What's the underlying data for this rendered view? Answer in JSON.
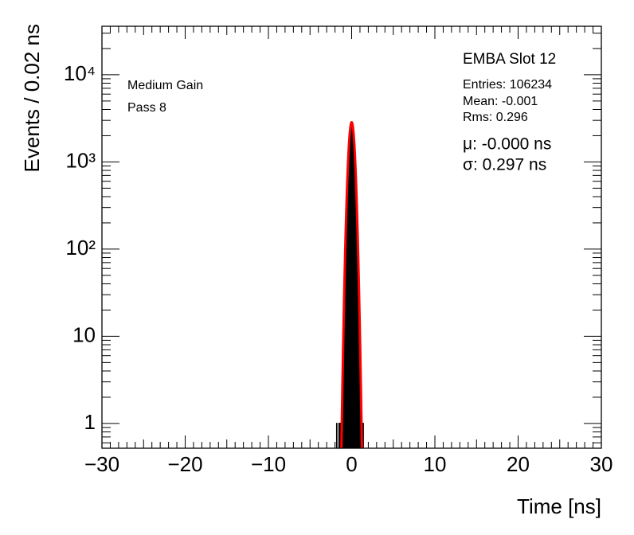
{
  "chart_data": {
    "type": "histogram",
    "xlabel": "Time [ns]",
    "ylabel": "Events / 0.02 ns",
    "xlim": [
      -30,
      30
    ],
    "xticks": [
      {
        "value": -30,
        "label": "−30"
      },
      {
        "value": -20,
        "label": "−20"
      },
      {
        "value": -10,
        "label": "−10"
      },
      0,
      10,
      20,
      30
    ],
    "ylim": [
      0.52,
      36000
    ],
    "yticks": [
      1,
      10,
      {
        "value": 100,
        "label": "10²"
      },
      {
        "value": 1000,
        "label": "10³"
      },
      {
        "value": 10000,
        "label": "10⁴"
      }
    ],
    "log_y": true,
    "color": "#000000",
    "bins": [
      -1.8,
      -1.78,
      -1.76,
      -1.74,
      -1.72,
      -1.7,
      -1.68,
      -1.66,
      -1.64,
      -1.62,
      -1.6,
      -1.58,
      -1.56,
      -1.54,
      -1.52,
      -1.5,
      -1.48,
      -1.46,
      -1.44,
      -1.42,
      -1.4,
      -1.38,
      -1.36,
      -1.34,
      -1.32,
      -1.3,
      -1.28,
      -1.26,
      -1.24,
      -1.22,
      -1.2,
      -1.18,
      -1.16,
      -1.14,
      -1.12,
      -1.1,
      -1.08,
      -1.06,
      -1.04,
      -1.02,
      -1.0,
      -0.98,
      -0.96,
      -0.94,
      -0.92,
      -0.9,
      -0.88,
      -0.86,
      -0.84,
      -0.82,
      -0.8,
      -0.78,
      -0.76,
      -0.74,
      -0.72,
      -0.7,
      -0.68,
      -0.66,
      -0.64,
      -0.62,
      -0.6,
      -0.58,
      -0.56,
      -0.54,
      -0.52,
      -0.5,
      -0.48,
      -0.46,
      -0.44,
      -0.42,
      -0.4,
      -0.38,
      -0.36,
      -0.34,
      -0.32,
      -0.3,
      -0.28,
      -0.26,
      -0.24,
      -0.22,
      -0.2,
      -0.18,
      -0.16,
      -0.14,
      -0.12,
      -0.1,
      -0.08,
      -0.06,
      -0.04,
      -0.02,
      0,
      0.02,
      0.04,
      0.06,
      0.08,
      0.1,
      0.12,
      0.14,
      0.16,
      0.18,
      0.2,
      0.22,
      0.24,
      0.26,
      0.28,
      0.3,
      0.32,
      0.34,
      0.36,
      0.38,
      0.4,
      0.42,
      0.44,
      0.46,
      0.48,
      0.5,
      0.52,
      0.54,
      0.56,
      0.58,
      0.6,
      0.62,
      0.64,
      0.66,
      0.68,
      0.7,
      0.72,
      0.74,
      0.76,
      0.78,
      0.8,
      0.82,
      0.84,
      0.86,
      0.88,
      0.9,
      0.92,
      0.94,
      0.96,
      0.98,
      1.0,
      1.02,
      1.04,
      1.06,
      1.08,
      1.1,
      1.12,
      1.14,
      1.16,
      1.18,
      1.2,
      1.22,
      1.24,
      1.26,
      1.28,
      1.3,
      1.32,
      1.34,
      1.36,
      1.38,
      1.4,
      1.42,
      1.44,
      1.46,
      1.48,
      1.5,
      1.52,
      1.54,
      1.56,
      1.58,
      1.6
    ],
    "values": [
      1,
      0,
      0,
      0,
      0,
      0,
      0,
      0,
      0,
      0,
      0,
      0,
      0,
      0,
      1,
      0,
      0,
      0,
      1,
      0,
      0,
      0,
      0,
      1,
      0,
      0,
      1,
      0,
      1,
      1,
      1,
      1,
      2,
      2,
      3,
      3,
      4,
      5,
      7,
      9,
      11,
      14,
      17,
      21,
      26,
      32,
      39,
      47,
      57,
      69,
      83,
      99,
      117,
      139,
      164,
      192,
      223,
      260,
      300,
      346,
      397,
      453,
      514,
      580,
      652,
      730,
      814,
      903,
      998,
      1098,
      1203,
      1312,
      1424,
      1538,
      1654,
      1771,
      1887,
      2002,
      2115,
      2223,
      2326,
      2423,
      2512,
      2593,
      2665,
      2726,
      2776,
      2814,
      2839,
      2852,
      2852,
      2839,
      2814,
      2776,
      2726,
      2665,
      2593,
      2512,
      2423,
      2326,
      2223,
      2115,
      2002,
      1887,
      1771,
      1654,
      1538,
      1424,
      1312,
      1203,
      1098,
      998,
      903,
      814,
      730,
      652,
      580,
      514,
      453,
      397,
      346,
      300,
      260,
      223,
      192,
      164,
      139,
      117,
      99,
      83,
      69,
      57,
      47,
      39,
      32,
      26,
      21,
      17,
      14,
      11,
      9,
      7,
      5,
      4,
      3,
      3,
      2,
      2,
      1,
      1,
      1,
      0,
      1,
      0,
      0,
      1,
      0,
      1,
      0,
      1,
      0,
      0,
      0,
      0,
      0,
      0,
      0,
      0,
      0,
      0
    ],
    "fit": {
      "mu": 0,
      "sigma": 0.297,
      "amplitude": 2854,
      "color": "#ff0000"
    },
    "annotations": {
      "gain": "Medium Gain",
      "pass": "Pass 8",
      "slot": "EMBA Slot 12",
      "entries": "Entries: 106234",
      "mean": "Mean: -0.001",
      "rms": "Rms: 0.296",
      "fit_mu": "μ: -0.000 ns",
      "fit_sigma": "σ: 0.297 ns"
    }
  }
}
